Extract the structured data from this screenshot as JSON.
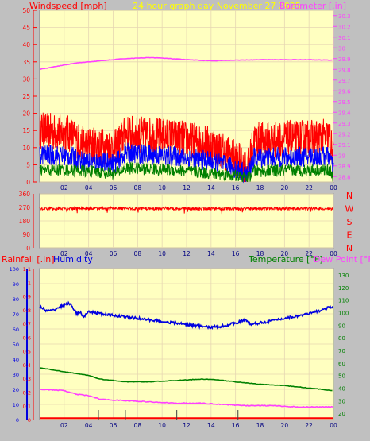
{
  "colors": {
    "background": "#c0c0c0",
    "plot_bg": "#ffffc0",
    "grid": "#e6d6b2",
    "wind_speed": "#ff0000",
    "wind_avg": "#0000ff",
    "wind_low": "#008000",
    "barometer": "#ff40ff",
    "direction": "#ff0000",
    "rainfall": "#ff0000",
    "humidity": "#0000e0",
    "temperature": "#008000",
    "dew_point": "#ff40ff",
    "title": "#ffff00"
  },
  "header": {
    "left_title": "Windspeed [mph]",
    "center_title": "24 hour graph day   November 27 2025",
    "right_title": "Barometer [.in]"
  },
  "panel3_titles": {
    "rainfall": "Rainfall [.in]",
    "humidity": "Humidity",
    "temperature": "Temperature [°F]",
    "dew_point": "Dew Point [°F]"
  },
  "x_ticks": [
    "02",
    "04",
    "06",
    "08",
    "10",
    "12",
    "14",
    "16",
    "18",
    "20",
    "22",
    "00"
  ],
  "chart_data": [
    {
      "type": "line",
      "name": "wind-barometer",
      "x_unit": "hours",
      "left_axis": {
        "label": "Windspeed [mph]",
        "ticks": [
          0,
          5,
          10,
          15,
          20,
          25,
          30,
          35,
          40,
          45,
          50
        ],
        "range": [
          0,
          50
        ]
      },
      "right_axis": {
        "label": "Barometer [.in]",
        "ticks": [
          "28.8",
          "28.9",
          "29",
          "29.1",
          "29.2",
          "29.3",
          "29.4",
          "29.5",
          "29.6",
          "29.7",
          "29.8",
          "29.9",
          "30",
          "30.1",
          "30.2",
          "30.3"
        ],
        "range": [
          28.75,
          30.35
        ]
      },
      "series": [
        {
          "key": "gust",
          "color": "#ff0000",
          "profile": [
            [
              0,
              15
            ],
            [
              2.5,
              14
            ],
            [
              3.5,
              11
            ],
            [
              6.2,
              10
            ],
            [
              7,
              14
            ],
            [
              11,
              13
            ],
            [
              14,
              11
            ],
            [
              16,
              7
            ],
            [
              17,
              4
            ],
            [
              17.5,
              12
            ],
            [
              23.7,
              13
            ],
            [
              24,
              6
            ]
          ]
        },
        {
          "key": "average",
          "color": "#0000ff",
          "profile": [
            [
              0,
              8
            ],
            [
              2.5,
              7.5
            ],
            [
              3.5,
              6
            ],
            [
              6.2,
              5.5
            ],
            [
              7,
              8.5
            ],
            [
              11,
              7.5
            ],
            [
              14,
              6
            ],
            [
              16,
              4
            ],
            [
              17,
              2.2
            ],
            [
              17.5,
              7
            ],
            [
              23.7,
              7.5
            ],
            [
              24,
              3
            ]
          ]
        },
        {
          "key": "low",
          "color": "#008000",
          "profile": [
            [
              0,
              3.5
            ],
            [
              2.5,
              3.5
            ],
            [
              6.2,
              2.5
            ],
            [
              7,
              4
            ],
            [
              11,
              3.5
            ],
            [
              14,
              2.5
            ],
            [
              16,
              1.8
            ],
            [
              17,
              1
            ],
            [
              17.5,
              3.2
            ],
            [
              23.7,
              3.5
            ],
            [
              24,
              1
            ]
          ]
        },
        {
          "key": "barometer",
          "color": "#ff40ff",
          "axis": "right",
          "profile": [
            [
              0,
              29.8
            ],
            [
              1,
              29.82
            ],
            [
              3,
              29.86
            ],
            [
              5,
              29.88
            ],
            [
              7,
              29.9
            ],
            [
              9,
              29.91
            ],
            [
              10,
              29.905
            ],
            [
              12,
              29.89
            ],
            [
              14,
              29.88
            ],
            [
              16,
              29.885
            ],
            [
              18,
              29.89
            ],
            [
              22,
              29.89
            ],
            [
              24,
              29.885
            ]
          ]
        }
      ]
    },
    {
      "type": "scatter",
      "name": "wind-direction",
      "left_axis": {
        "ticks": [
          0,
          90,
          180,
          270,
          360
        ],
        "range": [
          0,
          360
        ]
      },
      "right_labels": [
        "N",
        "W",
        "S",
        "E",
        "N"
      ],
      "series": [
        {
          "key": "direction",
          "color": "#ff0000",
          "mean": 262
        }
      ]
    },
    {
      "type": "line",
      "name": "rain-humidity-temperature",
      "left_axis": {
        "label": "Rainfall [.in]",
        "ticks": [
          "0",
          "0.1",
          "0.2",
          "0.3",
          "0.4",
          "0.5",
          "0.6",
          "0.7",
          "0.8",
          "0.9",
          "1",
          "1.1"
        ],
        "range": [
          0,
          1.1
        ]
      },
      "left_axis_2": {
        "label": "Humidity",
        "ticks": [
          0,
          10,
          20,
          30,
          40,
          50,
          60,
          70,
          80,
          90,
          100
        ],
        "range": [
          0,
          100
        ]
      },
      "right_axis": {
        "label": "Temperature [°F]",
        "ticks": [
          20,
          30,
          40,
          50,
          60,
          70,
          80,
          90,
          100,
          110,
          120,
          130
        ],
        "range": [
          15,
          135
        ]
      },
      "series": [
        {
          "key": "humidity",
          "color": "#0000e0",
          "profile": [
            [
              0,
              75
            ],
            [
              0.5,
              72
            ],
            [
              1,
              72
            ],
            [
              2,
              76
            ],
            [
              2.5,
              77
            ],
            [
              2.8,
              73
            ],
            [
              3,
              70
            ],
            [
              3.3,
              71
            ],
            [
              3.6,
              68
            ],
            [
              4,
              71
            ],
            [
              4.5,
              71
            ],
            [
              5,
              70
            ],
            [
              7,
              68
            ],
            [
              9,
              66
            ],
            [
              11,
              64
            ],
            [
              13,
              62
            ],
            [
              14,
              61
            ],
            [
              15,
              62
            ],
            [
              16,
              64
            ],
            [
              16.8,
              66
            ],
            [
              17.2,
              63
            ],
            [
              18,
              64
            ],
            [
              20,
              67
            ],
            [
              22,
              70
            ],
            [
              24,
              75
            ]
          ]
        },
        {
          "key": "temperature",
          "color": "#008000",
          "axis": "right",
          "profile": [
            [
              0,
              56
            ],
            [
              2,
              53
            ],
            [
              4,
              50
            ],
            [
              5,
              47
            ],
            [
              7,
              45
            ],
            [
              9,
              45
            ],
            [
              11,
              46
            ],
            [
              13,
              47
            ],
            [
              14,
              47
            ],
            [
              16,
              45
            ],
            [
              18,
              43
            ],
            [
              20,
              42
            ],
            [
              22,
              40
            ],
            [
              24,
              38
            ]
          ]
        },
        {
          "key": "dew_point",
          "color": "#ff40ff",
          "axis": "right",
          "profile": [
            [
              0,
              39
            ],
            [
              2,
              38
            ],
            [
              3,
              35
            ],
            [
              4,
              34
            ],
            [
              5,
              31
            ],
            [
              7,
              30
            ],
            [
              9,
              29
            ],
            [
              11,
              28
            ],
            [
              13,
              28
            ],
            [
              15,
              27
            ],
            [
              17,
              26
            ],
            [
              19,
              26
            ],
            [
              21,
              25
            ],
            [
              24,
              25
            ]
          ]
        },
        {
          "key": "rainfall",
          "color": "#ff0000",
          "profile": [
            [
              0,
              0.01
            ],
            [
              24,
              0.01
            ]
          ]
        }
      ]
    }
  ]
}
